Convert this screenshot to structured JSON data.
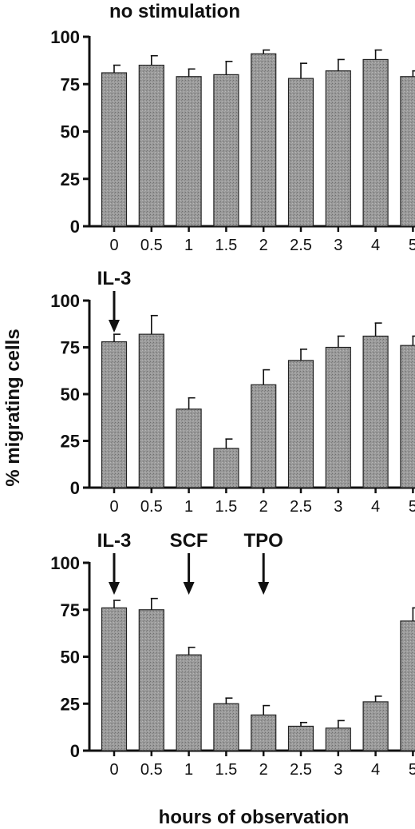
{
  "figure": {
    "ylabel": "% migrating cells",
    "xlabel": "hours of observation"
  },
  "chart_data": [
    {
      "type": "bar",
      "title": "no stimulation",
      "categories": [
        "0",
        "0.5",
        "1",
        "1.5",
        "2",
        "2.5",
        "3",
        "4",
        "5"
      ],
      "values": [
        81,
        85,
        79,
        80,
        91,
        78,
        82,
        88,
        79
      ],
      "errors": [
        4,
        5,
        4,
        7,
        2,
        8,
        6,
        5,
        3
      ],
      "ylim": [
        0,
        100
      ],
      "yticks": [
        0,
        25,
        50,
        75,
        100
      ],
      "annotations": []
    },
    {
      "type": "bar",
      "title": "",
      "categories": [
        "0",
        "0.5",
        "1",
        "1.5",
        "2",
        "2.5",
        "3",
        "4",
        "5"
      ],
      "values": [
        78,
        82,
        42,
        21,
        55,
        68,
        75,
        81,
        76
      ],
      "errors": [
        4,
        10,
        6,
        5,
        8,
        6,
        6,
        7,
        5
      ],
      "ylim": [
        0,
        100
      ],
      "yticks": [
        0,
        25,
        50,
        75,
        100
      ],
      "annotations": [
        {
          "text": "IL-3",
          "category": "0"
        }
      ]
    },
    {
      "type": "bar",
      "title": "",
      "categories": [
        "0",
        "0.5",
        "1",
        "1.5",
        "2",
        "2.5",
        "3",
        "4",
        "5"
      ],
      "values": [
        76,
        75,
        51,
        25,
        19,
        13,
        12,
        26,
        69
      ],
      "errors": [
        4,
        6,
        4,
        3,
        5,
        2,
        4,
        3,
        7
      ],
      "ylim": [
        0,
        100
      ],
      "yticks": [
        0,
        25,
        50,
        75,
        100
      ],
      "annotations": [
        {
          "text": "IL-3",
          "category": "0"
        },
        {
          "text": "SCF",
          "category": "1"
        },
        {
          "text": "TPO",
          "category": "2"
        }
      ]
    }
  ]
}
